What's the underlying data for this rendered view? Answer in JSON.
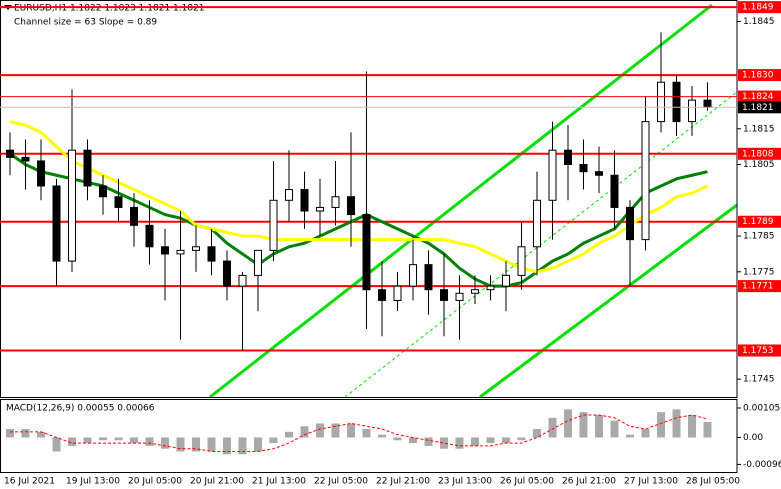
{
  "chart_data": [
    {
      "type": "candlestick",
      "title": "EURUSD,H1 1.1822 1.1823 1.1821 1.1821",
      "subtitle": "Channel size = 63 Slope = 0.89",
      "categories": [
        "16 Jul 2021",
        null,
        null,
        null,
        "19 Jul 13:00",
        null,
        null,
        null,
        "20 Jul 05:00",
        null,
        null,
        null,
        "20 Jul 21:00",
        null,
        null,
        null,
        "21 Jul 13:00",
        null,
        null,
        null,
        "22 Jul 05:00",
        null,
        null,
        null,
        "22 Jul 21:00",
        null,
        null,
        null,
        "23 Jul 13:00",
        null,
        null,
        null,
        "26 Jul 05:00",
        null,
        null,
        null,
        "26 Jul 21:00",
        null,
        null,
        null,
        "27 Jul 13:00",
        null,
        null,
        null,
        "28 Jul 05:00",
        null
      ],
      "open": [
        1.1809,
        1.1807,
        1.1806,
        1.1799,
        1.1778,
        1.1809,
        1.1799,
        1.1796,
        1.1793,
        1.1788,
        1.1782,
        1.178,
        1.1781,
        1.1782,
        1.1778,
        1.1771,
        1.1774,
        1.1781,
        1.1795,
        1.1798,
        1.1792,
        1.1793,
        1.1796,
        1.1791,
        1.177,
        1.1767,
        1.1771,
        1.1777,
        1.177,
        1.1767,
        1.1769,
        1.177,
        1.1771,
        1.1774,
        1.1782,
        1.1795,
        1.1809,
        1.1805,
        1.1803,
        1.1802,
        1.1793,
        1.1784,
        1.1817,
        1.1828,
        1.1817,
        1.1823
      ],
      "high": [
        1.1814,
        1.1812,
        1.1812,
        1.1801,
        1.1826,
        1.1812,
        1.1802,
        1.1801,
        1.1797,
        1.1795,
        1.1787,
        1.1792,
        1.1788,
        1.1787,
        1.1781,
        1.1775,
        1.1781,
        1.1806,
        1.1809,
        1.1803,
        1.1801,
        1.1806,
        1.1814,
        1.1831,
        1.1778,
        1.1775,
        1.1784,
        1.1781,
        1.178,
        1.1774,
        1.1774,
        1.1774,
        1.1778,
        1.1789,
        1.1803,
        1.1817,
        1.1816,
        1.1812,
        1.181,
        1.1809,
        1.1795,
        1.1824,
        1.1842,
        1.183,
        1.1827,
        1.1828
      ],
      "low": [
        1.1802,
        1.1798,
        1.1795,
        1.1771,
        1.1775,
        1.1795,
        1.1791,
        1.1789,
        1.1782,
        1.1777,
        1.1767,
        1.1756,
        1.1775,
        1.1774,
        1.1767,
        1.1753,
        1.1764,
        1.1778,
        1.1789,
        1.1787,
        1.1785,
        1.1788,
        1.1782,
        1.1759,
        1.1757,
        1.1764,
        1.1767,
        1.1763,
        1.1757,
        1.1756,
        1.1766,
        1.1767,
        1.1764,
        1.177,
        1.1774,
        1.1784,
        1.1795,
        1.1798,
        1.1797,
        1.1787,
        1.1771,
        1.1781,
        1.1814,
        1.1813,
        1.1813,
        1.182
      ],
      "close": [
        1.1807,
        1.1806,
        1.1799,
        1.1778,
        1.1809,
        1.1799,
        1.1796,
        1.1793,
        1.1788,
        1.1782,
        1.178,
        1.1781,
        1.1782,
        1.1778,
        1.1771,
        1.1774,
        1.1781,
        1.1795,
        1.1798,
        1.1792,
        1.1793,
        1.1796,
        1.1791,
        1.177,
        1.1767,
        1.1771,
        1.1777,
        1.177,
        1.1767,
        1.1769,
        1.177,
        1.1771,
        1.1774,
        1.1782,
        1.1795,
        1.1809,
        1.1805,
        1.1803,
        1.1802,
        1.1793,
        1.1784,
        1.1817,
        1.1828,
        1.1817,
        1.1823,
        1.1821
      ],
      "up_color": "#ffffff",
      "down_color": "#000000",
      "series": [
        {
          "color": "#008000",
          "values": [
            1.1808,
            1.1805,
            1.1803,
            1.1802,
            1.1801,
            1.18,
            1.1799,
            1.1797,
            1.1795,
            1.1793,
            1.1791,
            1.179,
            1.1788,
            1.1787,
            1.1783,
            1.178,
            1.1777,
            1.178,
            1.1782,
            1.1783,
            1.1785,
            1.1787,
            1.1789,
            1.1791,
            1.1789,
            1.1787,
            1.1785,
            1.1783,
            1.178,
            1.1776,
            1.1773,
            1.1771,
            1.1771,
            1.1772,
            1.1775,
            1.1778,
            1.178,
            1.1783,
            1.1785,
            1.1787,
            1.1792,
            1.1797,
            1.1799,
            1.1801,
            1.1802,
            1.1803
          ]
        },
        {
          "color": "#ffff00",
          "values": [
            1.1817,
            1.1816,
            1.1814,
            1.181,
            1.1806,
            1.1804,
            1.1802,
            1.18,
            1.1798,
            1.1796,
            1.1794,
            1.1792,
            1.1788,
            1.1787,
            1.1786,
            1.1785,
            1.1785,
            1.1784,
            1.1784,
            1.1784,
            1.1784,
            1.1784,
            1.1784,
            1.1784,
            1.1784,
            1.1784,
            1.1784,
            1.1784,
            1.1784,
            1.1783,
            1.1782,
            1.178,
            1.1778,
            1.1776,
            1.1775,
            1.1776,
            1.1778,
            1.178,
            1.1783,
            1.1785,
            1.1788,
            1.1791,
            1.1793,
            1.1796,
            1.1797,
            1.1799
          ]
        }
      ],
      "levels": [
        {
          "value": 1.1849,
          "label": "1.1849"
        },
        {
          "value": 1.183,
          "label": "1.1830"
        },
        {
          "value": 1.1808,
          "label": "1.1808"
        },
        {
          "value": 1.1789,
          "label": "1.1789"
        },
        {
          "value": 1.1771,
          "label": "1.1771"
        },
        {
          "value": 1.1753,
          "label": "1.1753"
        }
      ],
      "level_color": "#ff0000",
      "price_marks": [
        {
          "value": 1.1824,
          "label": "1.1824",
          "color": "#ff0000"
        },
        {
          "value": 1.1821,
          "label": "1.1821",
          "color": "#000000"
        }
      ],
      "ylim": [
        1.174,
        1.1851
      ],
      "yticks": [
        1.1845,
        1.1815,
        1.1805,
        1.1785,
        1.1775,
        1.1745
      ],
      "grid": false
    },
    {
      "type": "bar",
      "title": "MACD(12,26,9) 0.00055 0.00066",
      "values": [
        0.0003,
        0.0003,
        0.0002,
        -0.0005,
        -0.0003,
        -0.0002,
        -0.0001,
        -0.0001,
        -0.0002,
        -0.0003,
        -0.0004,
        -0.0005,
        -0.0005,
        -0.0005,
        -0.0006,
        -0.0006,
        -0.0005,
        -0.0002,
        0.0002,
        0.0004,
        0.0005,
        0.0005,
        0.0005,
        0.0003,
        0.0001,
        -0.0001,
        -0.0002,
        -0.0003,
        -0.0004,
        -0.0004,
        -0.0003,
        -0.0002,
        -0.0002,
        -0.0001,
        0.0003,
        0.0007,
        0.001,
        0.0009,
        0.0008,
        0.0006,
        0.0001,
        0.0003,
        0.0009,
        0.001,
        0.0008,
        0.00055
      ],
      "color": "#a9a9a9",
      "signal": {
        "color": "#ff0000",
        "values": [
          0.0002,
          0.0002,
          0.0002,
          0,
          -0.0002,
          -0.0002,
          -0.0002,
          -0.0002,
          -0.0002,
          -0.0002,
          -0.0003,
          -0.0004,
          -0.0004,
          -0.0005,
          -0.0005,
          -0.0005,
          -0.0005,
          -0.0004,
          -0.0002,
          0.0001,
          0.0003,
          0.0004,
          0.0005,
          0.0004,
          0.0003,
          0.0001,
          0,
          -0.0001,
          -0.0002,
          -0.0003,
          -0.0003,
          -0.0003,
          -0.0002,
          -0.0002,
          0,
          0.0003,
          0.0006,
          0.0008,
          0.0008,
          0.0007,
          0.0004,
          0.0003,
          0.0005,
          0.0007,
          0.0008,
          0.00066
        ]
      },
      "ylim": [
        -0.00123,
        0.00137
      ],
      "yticks": [
        0.00105,
        {
          "value": 0,
          "label": "0.00"
        },
        -0.00096
      ],
      "grid": false
    }
  ]
}
